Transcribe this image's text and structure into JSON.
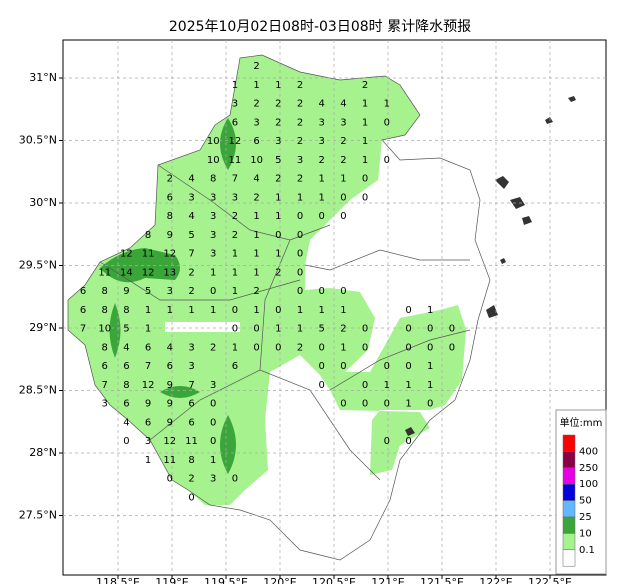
{
  "title": "2025年10月02日08时-03日08时 累计降水预报",
  "map": {
    "grid": true,
    "lat_ticks": [
      {
        "value": 31,
        "label": "31°N"
      },
      {
        "value": 30.5,
        "label": "30.5°N"
      },
      {
        "value": 30,
        "label": "30°N"
      },
      {
        "value": 29.5,
        "label": "29.5°N"
      },
      {
        "value": 29,
        "label": "29°N"
      },
      {
        "value": 28.5,
        "label": "28.5°N"
      },
      {
        "value": 28,
        "label": "28°N"
      },
      {
        "value": 27.5,
        "label": "27.5°N"
      }
    ],
    "lon_ticks": [
      {
        "value": 118.5,
        "label": "118.5°E"
      },
      {
        "value": 119,
        "label": "119°E"
      },
      {
        "value": 119.5,
        "label": "119.5°E"
      },
      {
        "value": 120,
        "label": "120°E"
      },
      {
        "value": 120.5,
        "label": "120.5°E"
      },
      {
        "value": 121,
        "label": "121°E"
      },
      {
        "value": 121.5,
        "label": "121.5°E"
      },
      {
        "value": 122,
        "label": "122°E"
      },
      {
        "value": 122.5,
        "label": "122.5°E"
      }
    ]
  },
  "precip_grid": {
    "rows": [
      [
        null,
        null,
        null,
        null,
        null,
        null,
        null,
        null,
        2,
        null,
        null,
        null,
        null,
        null,
        null,
        null,
        null,
        null
      ],
      [
        null,
        null,
        null,
        null,
        null,
        null,
        null,
        1,
        1,
        1,
        2,
        null,
        null,
        2,
        null,
        null,
        null,
        null
      ],
      [
        null,
        null,
        null,
        null,
        null,
        null,
        null,
        3,
        2,
        2,
        2,
        4,
        4,
        1,
        1,
        null,
        null,
        null
      ],
      [
        null,
        null,
        null,
        null,
        null,
        null,
        null,
        6,
        3,
        2,
        2,
        3,
        3,
        1,
        0,
        null,
        null,
        null
      ],
      [
        null,
        null,
        null,
        null,
        null,
        null,
        10,
        12,
        6,
        3,
        2,
        3,
        2,
        1,
        null,
        null,
        null,
        null
      ],
      [
        null,
        null,
        null,
        null,
        null,
        null,
        10,
        11,
        10,
        5,
        3,
        2,
        2,
        1,
        0,
        null,
        null,
        null
      ],
      [
        null,
        null,
        null,
        null,
        2,
        4,
        8,
        7,
        4,
        2,
        2,
        1,
        1,
        0,
        null,
        null,
        null,
        null
      ],
      [
        null,
        null,
        null,
        null,
        6,
        3,
        3,
        3,
        2,
        1,
        1,
        1,
        0,
        0,
        null,
        null,
        null,
        null
      ],
      [
        null,
        null,
        null,
        null,
        8,
        4,
        3,
        2,
        1,
        1,
        0,
        0,
        0,
        null,
        null,
        null,
        null,
        null
      ],
      [
        null,
        null,
        null,
        8,
        9,
        5,
        3,
        2,
        1,
        0,
        0,
        null,
        null,
        null,
        null,
        null,
        null,
        null
      ],
      [
        null,
        null,
        12,
        11,
        12,
        7,
        3,
        1,
        1,
        1,
        0,
        null,
        null,
        null,
        null,
        null,
        null,
        null
      ],
      [
        null,
        11,
        14,
        12,
        13,
        2,
        1,
        1,
        1,
        2,
        0,
        null,
        null,
        null,
        null,
        null,
        null,
        null
      ],
      [
        6,
        8,
        9,
        5,
        3,
        2,
        0,
        1,
        2,
        null,
        0,
        0,
        0,
        null,
        null,
        null,
        null,
        null
      ],
      [
        6,
        8,
        8,
        1,
        1,
        1,
        1,
        0,
        1,
        0,
        1,
        1,
        1,
        null,
        null,
        0,
        1,
        null
      ],
      [
        7,
        10,
        5,
        1,
        null,
        null,
        null,
        0,
        0,
        1,
        1,
        5,
        2,
        0,
        null,
        0,
        0,
        0
      ],
      [
        null,
        8,
        4,
        6,
        4,
        3,
        2,
        1,
        0,
        0,
        2,
        0,
        1,
        0,
        null,
        0,
        0,
        0
      ],
      [
        null,
        6,
        6,
        7,
        6,
        3,
        null,
        6,
        null,
        null,
        null,
        0,
        0,
        null,
        0,
        0,
        1,
        null
      ],
      [
        null,
        7,
        8,
        12,
        9,
        7,
        3,
        null,
        null,
        null,
        null,
        0,
        null,
        0,
        1,
        1,
        1,
        null
      ],
      [
        null,
        3,
        6,
        9,
        9,
        6,
        0,
        null,
        null,
        null,
        null,
        null,
        0,
        0,
        0,
        1,
        0,
        null
      ],
      [
        null,
        null,
        4,
        6,
        9,
        6,
        0,
        null,
        null,
        null,
        null,
        null,
        null,
        null,
        null,
        null,
        null,
        null
      ],
      [
        null,
        null,
        0,
        3,
        12,
        11,
        0,
        null,
        null,
        null,
        null,
        null,
        null,
        null,
        0,
        0,
        null,
        null
      ],
      [
        null,
        null,
        null,
        1,
        11,
        8,
        1,
        null,
        null,
        null,
        null,
        null,
        null,
        null,
        null,
        null,
        null,
        null
      ],
      [
        null,
        null,
        null,
        null,
        0,
        2,
        3,
        0,
        null,
        null,
        null,
        null,
        null,
        null,
        null,
        null,
        null,
        null
      ],
      [
        null,
        null,
        null,
        null,
        null,
        0,
        null,
        null,
        null,
        null,
        null,
        null,
        null,
        null,
        null,
        null,
        null,
        null
      ]
    ]
  },
  "legend": {
    "title": "单位:mm",
    "levels": [
      400,
      250,
      100,
      50,
      25,
      10,
      0.1
    ],
    "colors": [
      "#ff0000",
      "#8a0045",
      "#e600e6",
      "#0000d9",
      "#62b8ff",
      "#3aa63a",
      "#a6f28f",
      "#ffffff"
    ]
  }
}
